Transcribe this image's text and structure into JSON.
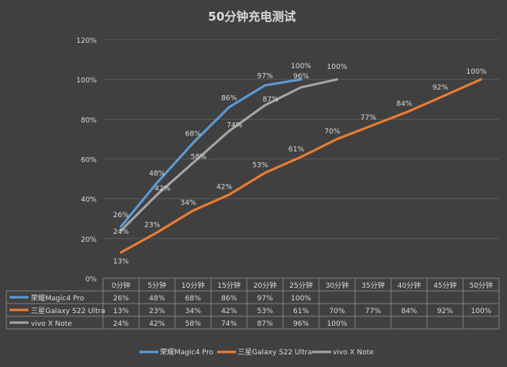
{
  "chart_data": {
    "type": "line",
    "title": "50分钟充电测试",
    "categories": [
      "0分钟",
      "5分钟",
      "10分钟",
      "15分钟",
      "20分钟",
      "25分钟",
      "30分钟",
      "35分钟",
      "40分钟",
      "45分钟",
      "50分钟"
    ],
    "ylim": [
      0,
      120
    ],
    "yticks": [
      "0%",
      "20%",
      "40%",
      "60%",
      "80%",
      "100%",
      "120%"
    ],
    "grid": true,
    "legend": "bottom",
    "series": [
      {
        "name": "荣耀Magic4 Pro",
        "color": "#5b9bd5",
        "values": [
          26,
          48,
          68,
          86,
          97,
          100,
          null,
          null,
          null,
          null,
          null
        ],
        "table": [
          "26%",
          "48%",
          "68%",
          "86%",
          "97%",
          "100%",
          "",
          "",
          "",
          "",
          ""
        ]
      },
      {
        "name": "三星Galaxy S22 Ultra",
        "color": "#ed7d31",
        "values": [
          13,
          23,
          34,
          42,
          53,
          61,
          70,
          77,
          84,
          92,
          100
        ],
        "table": [
          "13%",
          "23%",
          "34%",
          "42%",
          "53%",
          "61%",
          "70%",
          "77%",
          "84%",
          "92%",
          "100%"
        ]
      },
      {
        "name": "vivo X Note",
        "color": "#a5a5a5",
        "values": [
          24,
          42,
          58,
          74,
          87,
          96,
          100,
          null,
          null,
          null,
          null
        ],
        "table": [
          "24%",
          "42%",
          "58%",
          "74%",
          "87%",
          "96%",
          "100%",
          "",
          "",
          "",
          ""
        ]
      }
    ]
  }
}
